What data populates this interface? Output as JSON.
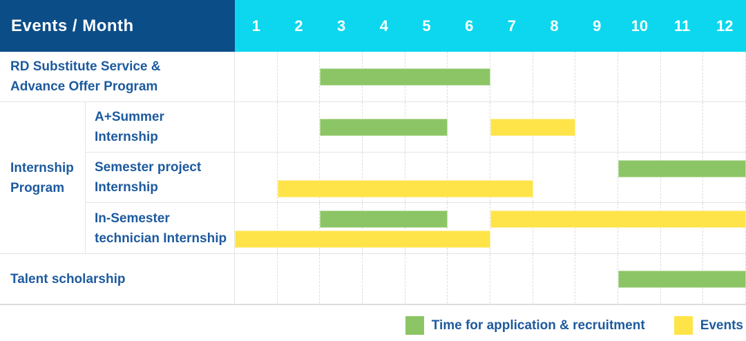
{
  "header": {
    "corner_label": "Events / Month",
    "months": [
      "1",
      "2",
      "3",
      "4",
      "5",
      "6",
      "7",
      "8",
      "9",
      "10",
      "11",
      "12"
    ]
  },
  "colors": {
    "header_bg": "#0b4d87",
    "months_bg": "#0cd7ee",
    "header_text": "#ffffff",
    "label_text": "#1d5a9e",
    "recruitment": "#8cc565",
    "event": "#ffe449",
    "grid_line": "#e4e4e4",
    "grid_dash": "#dcdcdc"
  },
  "chart_data": {
    "type": "gantt",
    "x_unit": "month",
    "x_ticks": [
      1,
      2,
      3,
      4,
      5,
      6,
      7,
      8,
      9,
      10,
      11,
      12
    ],
    "x_range": [
      1,
      12
    ],
    "legend_position": "bottom-right",
    "legend": [
      {
        "key": "recruitment",
        "label": "Time for application & recruitment",
        "color": "#8cc565"
      },
      {
        "key": "event",
        "label": "Events",
        "color": "#ffe449"
      }
    ],
    "sections": [
      {
        "type": "row",
        "label": "RD Substitute Service & Advance Offer Program",
        "label_lines": [
          "RD Substitute Service &",
          "Advance Offer Program"
        ],
        "bars": [
          {
            "kind": "recruitment",
            "start_month": 3,
            "end_month": 6,
            "lane": "center"
          }
        ]
      },
      {
        "type": "group",
        "label": "Internship Program",
        "label_lines": [
          "Internship",
          "Program"
        ],
        "rows": [
          {
            "label": "A+Summer Internship",
            "label_lines": [
              "A+Summer",
              "Internship"
            ],
            "bars": [
              {
                "kind": "recruitment",
                "start_month": 3,
                "end_month": 5,
                "lane": "center"
              },
              {
                "kind": "event",
                "start_month": 7,
                "end_month": 8,
                "lane": "center"
              }
            ]
          },
          {
            "label": "Semester project Internship",
            "label_lines": [
              "Semester project",
              "Internship"
            ],
            "bars": [
              {
                "kind": "recruitment",
                "start_month": 10,
                "end_month": 12,
                "lane": "top"
              },
              {
                "kind": "event",
                "start_month": 2,
                "end_month": 7,
                "lane": "bottom"
              }
            ]
          },
          {
            "label": "In-Semester technician Internship",
            "label_lines": [
              "In-Semester",
              "technician Internship"
            ],
            "bars": [
              {
                "kind": "recruitment",
                "start_month": 3,
                "end_month": 5,
                "lane": "top"
              },
              {
                "kind": "event",
                "start_month": 7,
                "end_month": 12,
                "lane": "top"
              },
              {
                "kind": "event",
                "start_month": 1,
                "end_month": 6,
                "lane": "bottom"
              }
            ]
          }
        ]
      },
      {
        "type": "row",
        "label": "Talent scholarship",
        "label_lines": [
          "Talent scholarship"
        ],
        "bars": [
          {
            "kind": "recruitment",
            "start_month": 10,
            "end_month": 12,
            "lane": "center"
          }
        ]
      }
    ]
  }
}
